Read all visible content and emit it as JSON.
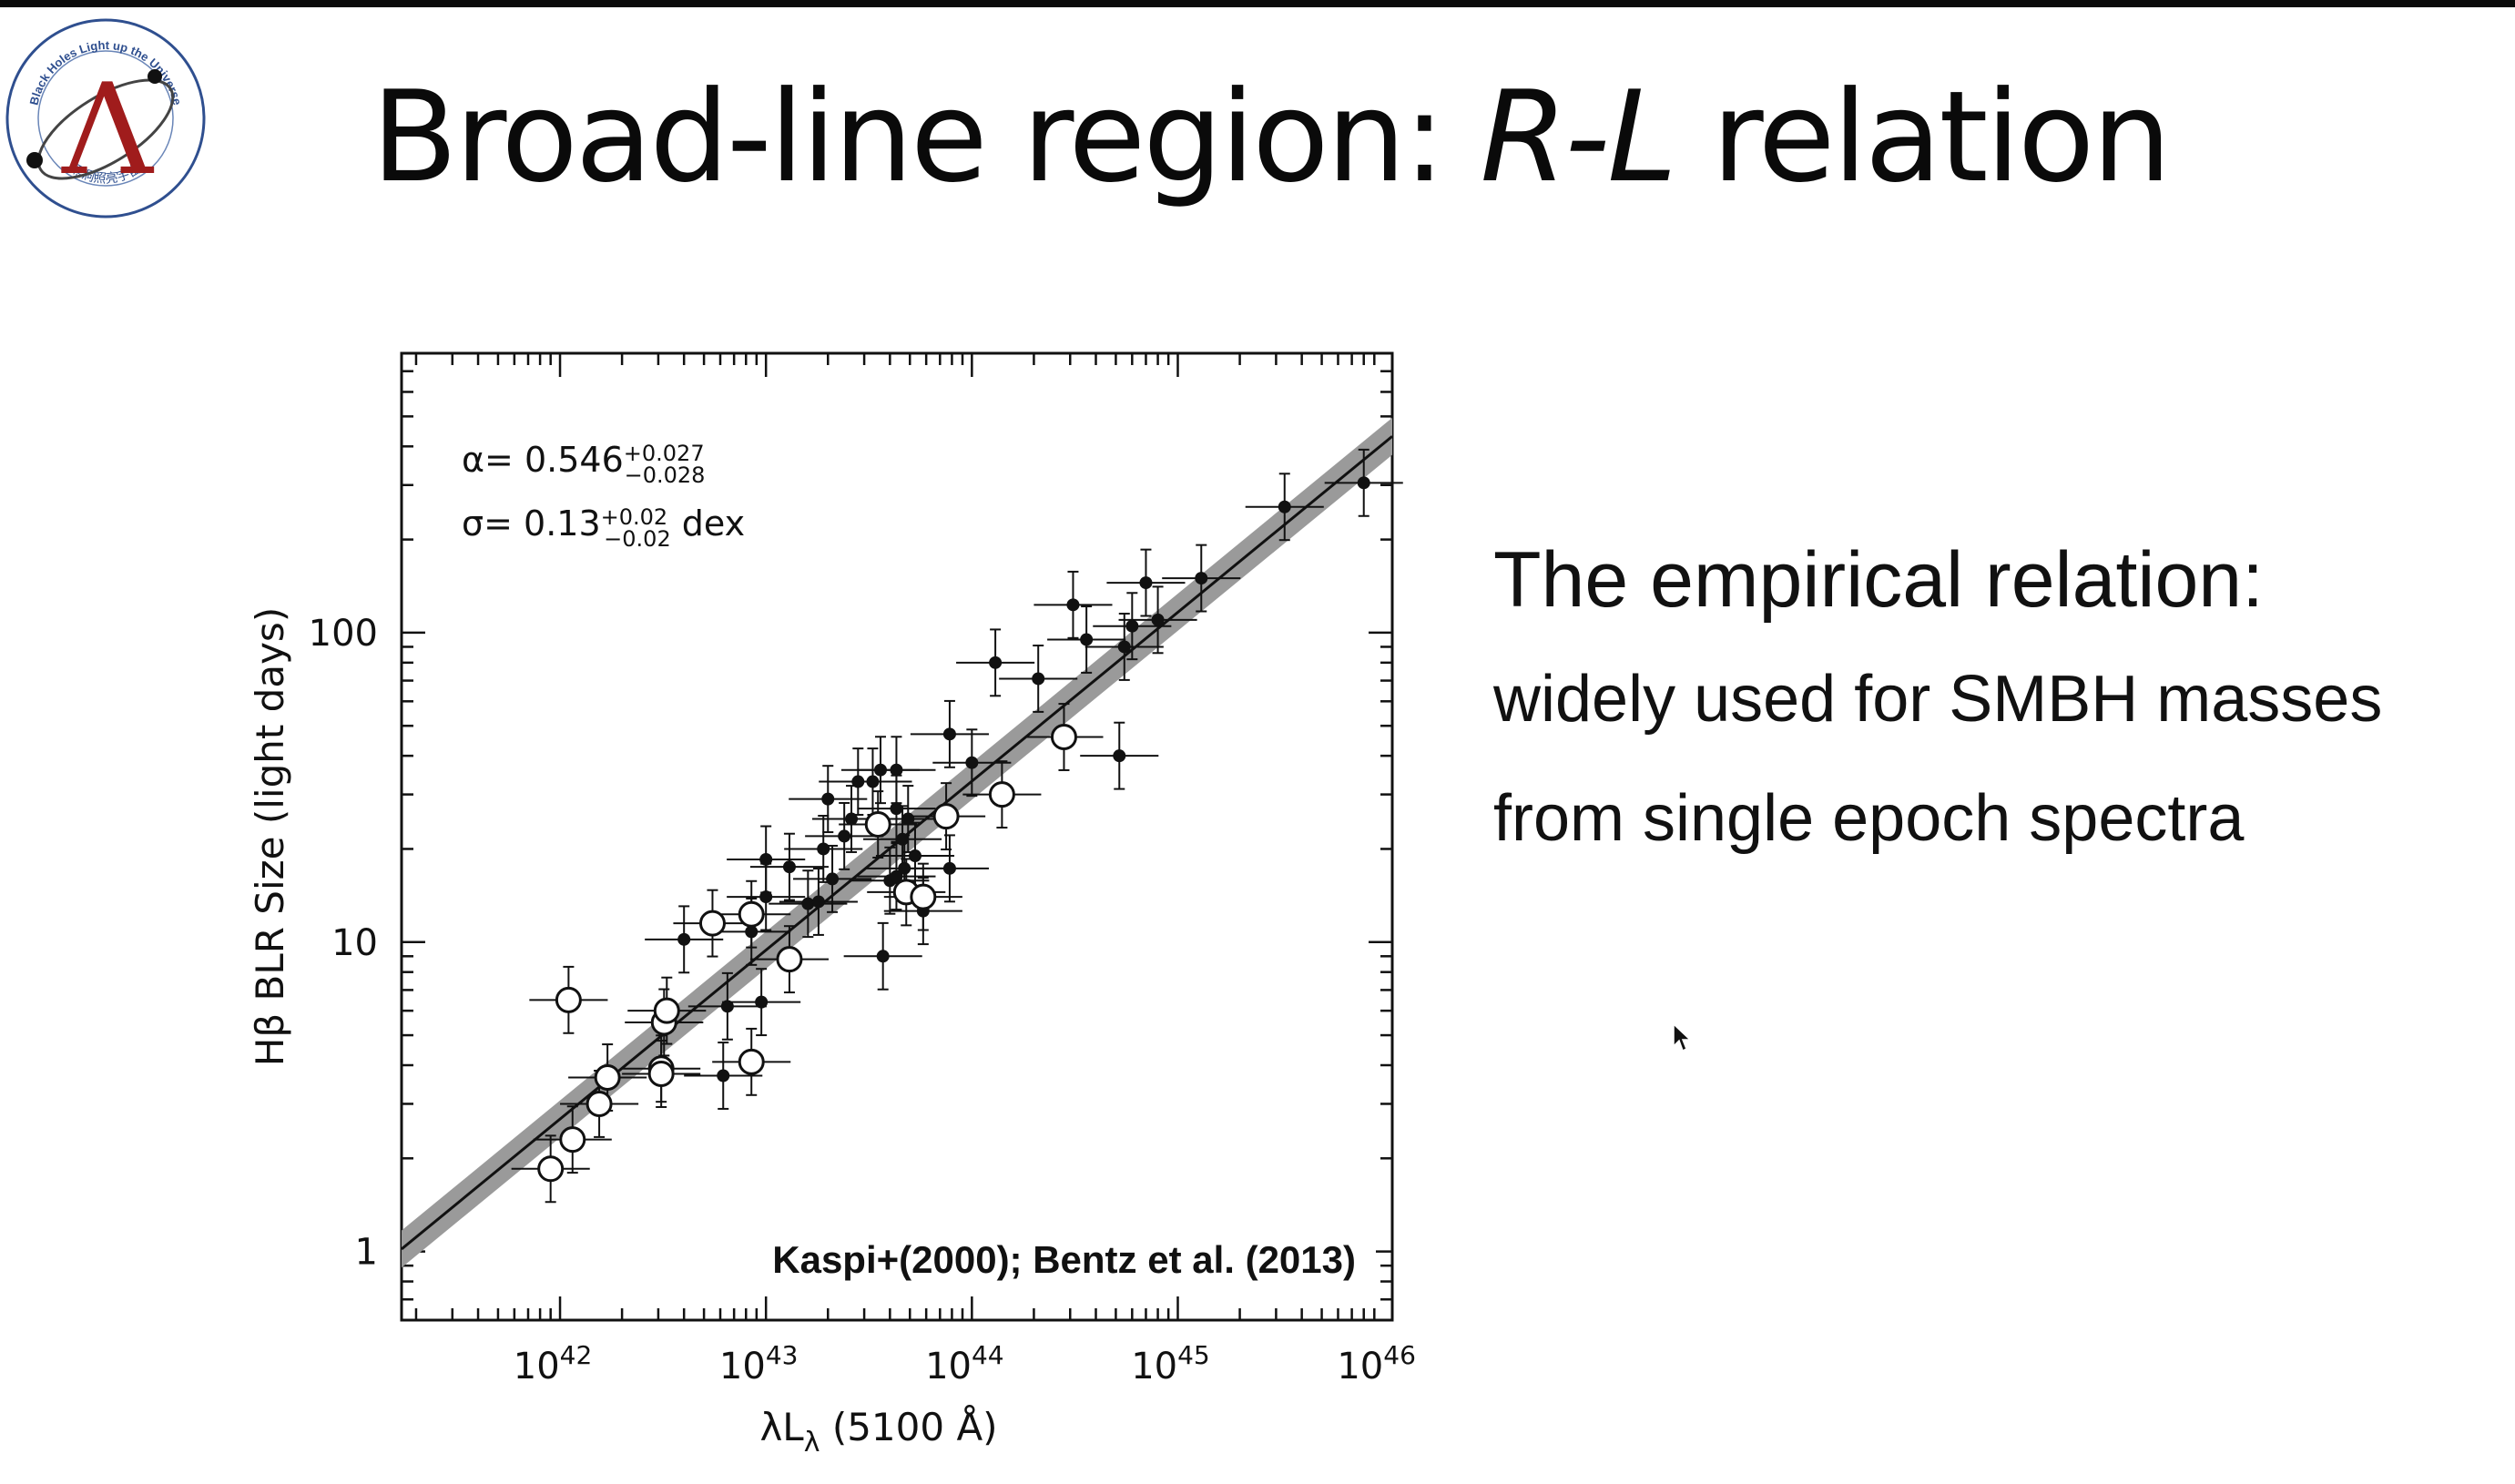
{
  "slide": {
    "title_main": "Broad-line region: ",
    "title_italic": "R-L",
    "title_tail": " relation"
  },
  "logo": {
    "letter": "Λ",
    "arc_text_top": "Black Holes Light up the Universe",
    "arc_text_bottom": "黑洞照亮宇宙"
  },
  "side": {
    "heading": "The empirical relation:",
    "lines": [
      "widely used for SMBH masses",
      "from single epoch spectra"
    ]
  },
  "chart_data": {
    "type": "scatter",
    "xlabel": "λL",
    "xlabel_sub": "λ",
    "xlabel_tail": " (5100 Å)",
    "ylabel": "Hβ BLR Size (light days)",
    "x_scale": "log",
    "y_scale": "log",
    "xlim": [
      1.7e+41,
      1.1e+46
    ],
    "ylim": [
      0.6,
      800
    ],
    "x_ticks": [
      {
        "value": 1e+42,
        "base": "10",
        "exp": "42"
      },
      {
        "value": 1e+43,
        "base": "10",
        "exp": "43"
      },
      {
        "value": 1e+44,
        "base": "10",
        "exp": "44"
      },
      {
        "value": 1e+45,
        "base": "10",
        "exp": "45"
      },
      {
        "value": 1e+46,
        "base": "10",
        "exp": "46"
      }
    ],
    "y_ticks": [
      {
        "value": 1,
        "label": "1"
      },
      {
        "value": 10,
        "label": "10"
      },
      {
        "value": 100,
        "label": "100"
      }
    ],
    "fit": {
      "slope_label": "α= ",
      "slope": "0.546",
      "slope_up": "+0.027",
      "slope_down": "−0.028",
      "scatter_label": "σ= ",
      "scatter": "0.13",
      "scatter_up": "+0.02",
      "scatter_down": "−0.02",
      "scatter_unit": " dex",
      "alpha": 0.546,
      "logR_at_1e44": 1.52
    },
    "citation": "Kaspi+(2000); Bentz et al. (2013)",
    "series": [
      {
        "marker": "filled",
        "points": [
          {
            "x": 6.2e+42,
            "y": 3.7
          },
          {
            "x": 6.5e+42,
            "y": 6.2
          },
          {
            "x": 9.5e+42,
            "y": 6.4
          },
          {
            "x": 4e+42,
            "y": 10.2
          },
          {
            "x": 8.5e+42,
            "y": 10.8
          },
          {
            "x": 1e+43,
            "y": 14
          },
          {
            "x": 1.3e+43,
            "y": 17.5
          },
          {
            "x": 1e+43,
            "y": 18.5
          },
          {
            "x": 1.6e+43,
            "y": 13.3
          },
          {
            "x": 1.8e+43,
            "y": 13.5
          },
          {
            "x": 2.1e+43,
            "y": 16
          },
          {
            "x": 1.9e+43,
            "y": 20
          },
          {
            "x": 2.4e+43,
            "y": 22
          },
          {
            "x": 2.6e+43,
            "y": 25
          },
          {
            "x": 2e+43,
            "y": 29
          },
          {
            "x": 2.8e+43,
            "y": 33
          },
          {
            "x": 3.3e+43,
            "y": 33
          },
          {
            "x": 3.6e+43,
            "y": 36
          },
          {
            "x": 4.3e+43,
            "y": 36
          },
          {
            "x": 3.7e+43,
            "y": 9.0
          },
          {
            "x": 4e+43,
            "y": 15.8
          },
          {
            "x": 4.3e+43,
            "y": 16.3
          },
          {
            "x": 4.7e+43,
            "y": 17.3
          },
          {
            "x": 5.3e+43,
            "y": 19
          },
          {
            "x": 4.6e+43,
            "y": 21.5
          },
          {
            "x": 4.9e+43,
            "y": 25
          },
          {
            "x": 4.3e+43,
            "y": 27
          },
          {
            "x": 5.8e+43,
            "y": 12.6
          },
          {
            "x": 7.8e+43,
            "y": 17.3
          },
          {
            "x": 7.8e+43,
            "y": 47
          },
          {
            "x": 1e+44,
            "y": 38
          },
          {
            "x": 1.3e+44,
            "y": 80
          },
          {
            "x": 2.1e+44,
            "y": 71
          },
          {
            "x": 3.1e+44,
            "y": 123
          },
          {
            "x": 3.6e+44,
            "y": 95
          },
          {
            "x": 5.2e+44,
            "y": 40
          },
          {
            "x": 5.5e+44,
            "y": 90
          },
          {
            "x": 6e+44,
            "y": 105
          },
          {
            "x": 7e+44,
            "y": 145
          },
          {
            "x": 8e+44,
            "y": 110
          },
          {
            "x": 1.3e+45,
            "y": 150
          },
          {
            "x": 3.3e+45,
            "y": 255
          },
          {
            "x": 8e+45,
            "y": 305
          }
        ]
      },
      {
        "marker": "open",
        "points": [
          {
            "x": 9e+41,
            "y": 1.85
          },
          {
            "x": 1.15e+42,
            "y": 2.3
          },
          {
            "x": 1.55e+42,
            "y": 3.0
          },
          {
            "x": 1.7e+42,
            "y": 3.65
          },
          {
            "x": 3.1e+42,
            "y": 3.9
          },
          {
            "x": 3.1e+42,
            "y": 3.75
          },
          {
            "x": 3.2e+42,
            "y": 5.5
          },
          {
            "x": 3.3e+42,
            "y": 6.0
          },
          {
            "x": 1.1e+42,
            "y": 6.5
          },
          {
            "x": 5.5e+42,
            "y": 11.5
          },
          {
            "x": 8.5e+42,
            "y": 12.3
          },
          {
            "x": 8.5e+42,
            "y": 4.1
          },
          {
            "x": 1.3e+43,
            "y": 8.8
          },
          {
            "x": 3.5e+43,
            "y": 24
          },
          {
            "x": 4.8e+43,
            "y": 14.5
          },
          {
            "x": 5.8e+43,
            "y": 14.0
          },
          {
            "x": 7.5e+43,
            "y": 25.5
          },
          {
            "x": 1.4e+44,
            "y": 30
          },
          {
            "x": 2.8e+44,
            "y": 46
          }
        ]
      }
    ]
  }
}
